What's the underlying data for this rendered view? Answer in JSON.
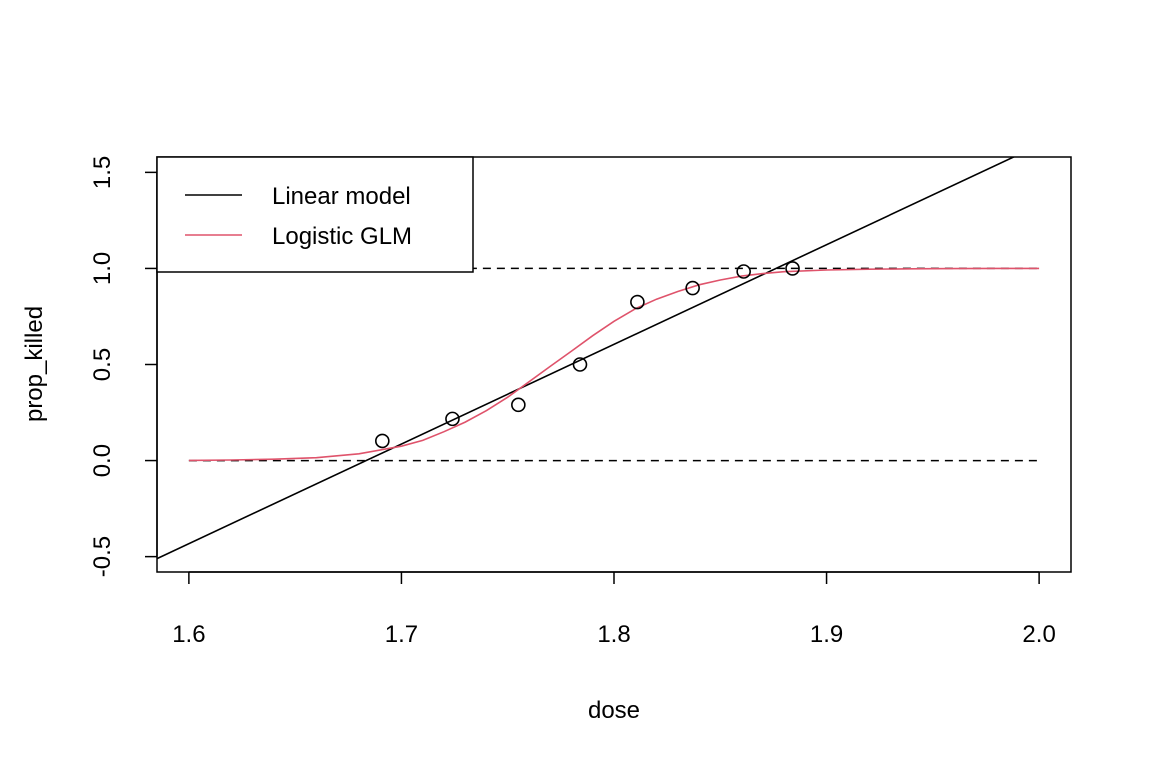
{
  "chart_data": {
    "type": "scatter",
    "title": "",
    "xlabel": "dose",
    "ylabel": "prop_killed",
    "xlim": [
      1.585,
      2.015
    ],
    "ylim": [
      -0.58,
      1.58
    ],
    "x_ticks": [
      1.6,
      1.7,
      1.8,
      1.9,
      2.0
    ],
    "x_tick_labels": [
      "1.6",
      "1.7",
      "1.8",
      "1.9",
      "2.0"
    ],
    "y_ticks": [
      -0.5,
      0.0,
      0.5,
      1.0,
      1.5
    ],
    "y_tick_labels": [
      "-0.5",
      "0.0",
      "0.5",
      "1.0",
      "1.5"
    ],
    "reference_lines": [
      0.0,
      1.0
    ],
    "grid": false,
    "legend_position": "top-left",
    "points": {
      "x": [
        1.691,
        1.724,
        1.755,
        1.784,
        1.811,
        1.837,
        1.861,
        1.884
      ],
      "y": [
        0.102,
        0.217,
        0.29,
        0.5,
        0.825,
        0.898,
        0.984,
        1.0
      ]
    },
    "series": [
      {
        "name": "Linear model",
        "kind": "line",
        "color": "#000000",
        "x": [
          1.585,
          2.015
        ],
        "y": [
          -0.51,
          1.72
        ]
      },
      {
        "name": "Logistic GLM",
        "kind": "curve",
        "color": "#DF536B",
        "x": [
          1.6,
          1.62,
          1.64,
          1.66,
          1.68,
          1.7,
          1.71,
          1.72,
          1.73,
          1.74,
          1.75,
          1.76,
          1.77,
          1.78,
          1.79,
          1.8,
          1.81,
          1.82,
          1.83,
          1.84,
          1.85,
          1.86,
          1.87,
          1.88,
          1.9,
          1.92,
          1.94,
          1.96,
          1.98,
          2.0
        ],
        "y": [
          0.001,
          0.003,
          0.007,
          0.015,
          0.035,
          0.075,
          0.105,
          0.15,
          0.2,
          0.26,
          0.33,
          0.41,
          0.49,
          0.57,
          0.65,
          0.725,
          0.79,
          0.84,
          0.88,
          0.915,
          0.94,
          0.96,
          0.973,
          0.983,
          0.992,
          0.996,
          0.998,
          0.999,
          1.0,
          1.0
        ]
      }
    ]
  }
}
